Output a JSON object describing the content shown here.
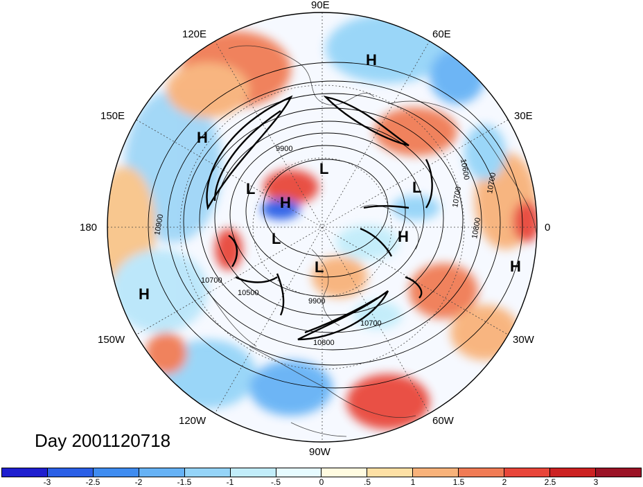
{
  "title": "Day 2001120718",
  "lon_labels": [
    "90E",
    "60E",
    "30E",
    "0",
    "30W",
    "60W",
    "90W",
    "120W",
    "150W",
    "180",
    "150E",
    "120E"
  ],
  "pressure_labels": {
    "H": [
      "H",
      "H",
      "H",
      "H",
      "H",
      "H"
    ],
    "L": [
      "L",
      "L",
      "L",
      "L",
      "L"
    ]
  },
  "contour_labels": [
    "9900",
    "10700",
    "10900",
    "10700",
    "10500",
    "9900",
    "10700",
    "10800",
    "10600",
    "10700",
    "10800"
  ],
  "colorbar": {
    "ticks": [
      "-3",
      "-2.5",
      "-2",
      "-1.5",
      "-1",
      "-.5",
      "0",
      ".5",
      "1",
      "1.5",
      "2",
      "2.5",
      "3"
    ],
    "colors": [
      "#1f1fcf",
      "#2a5fe6",
      "#3f8cf0",
      "#66b2f5",
      "#95d4f8",
      "#c2edfa",
      "#e6fbff",
      "#fffbe0",
      "#fde0a5",
      "#f8b27a",
      "#f07b55",
      "#e8463a",
      "#cc2222",
      "#9b1326"
    ]
  }
}
